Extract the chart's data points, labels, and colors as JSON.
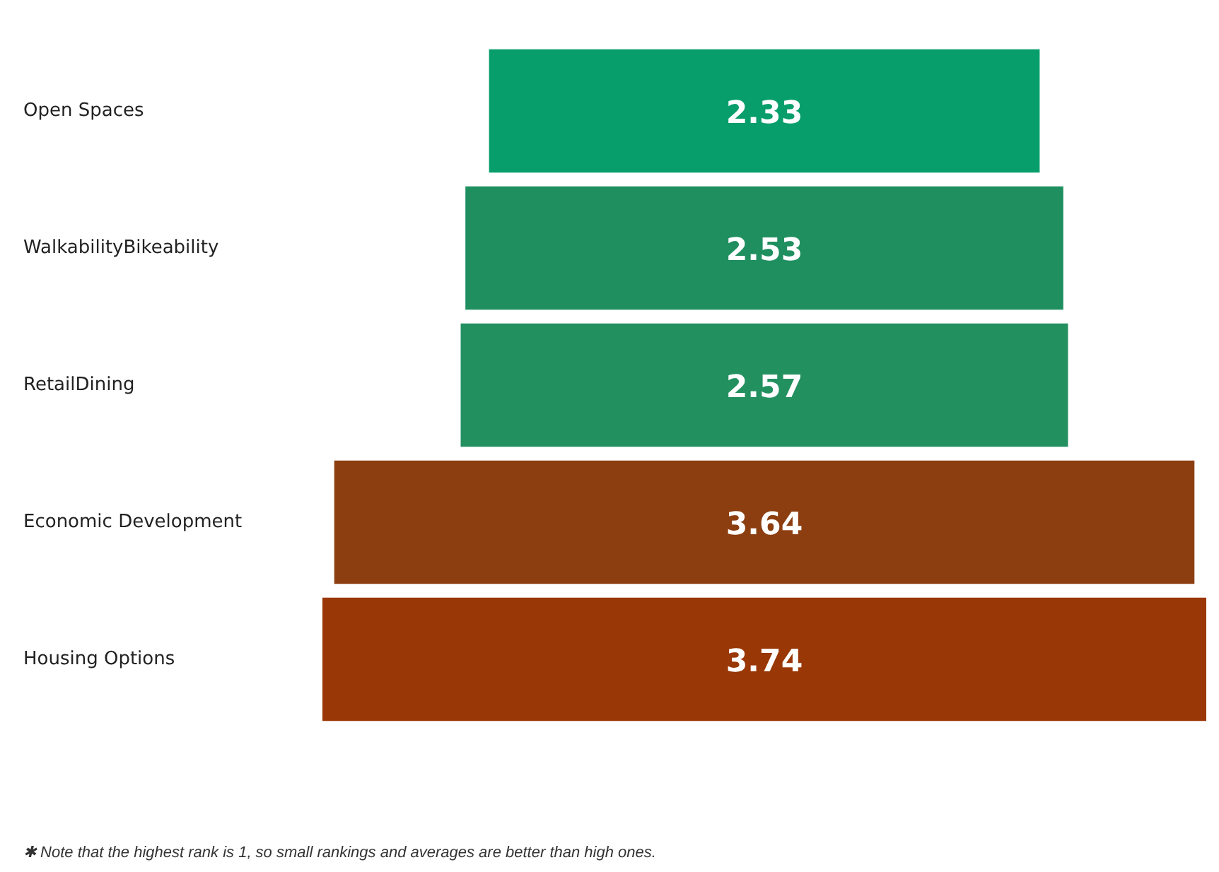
{
  "chart_data": {
    "type": "other",
    "categories": [
      "Open Spaces",
      "WalkabilityBikeability",
      "RetailDining",
      "Economic Development",
      "Housing Options"
    ],
    "values": [
      2.33,
      2.53,
      2.57,
      3.64,
      3.74
    ],
    "colors": [
      "#079e6b",
      "#1f8f60",
      "#22905f",
      "#8c3e10",
      "#9a3706"
    ],
    "data_labels": true,
    "annotations": [
      "✱ Note that the highest rank is 1, so small rankings and averages are better than high ones."
    ]
  }
}
